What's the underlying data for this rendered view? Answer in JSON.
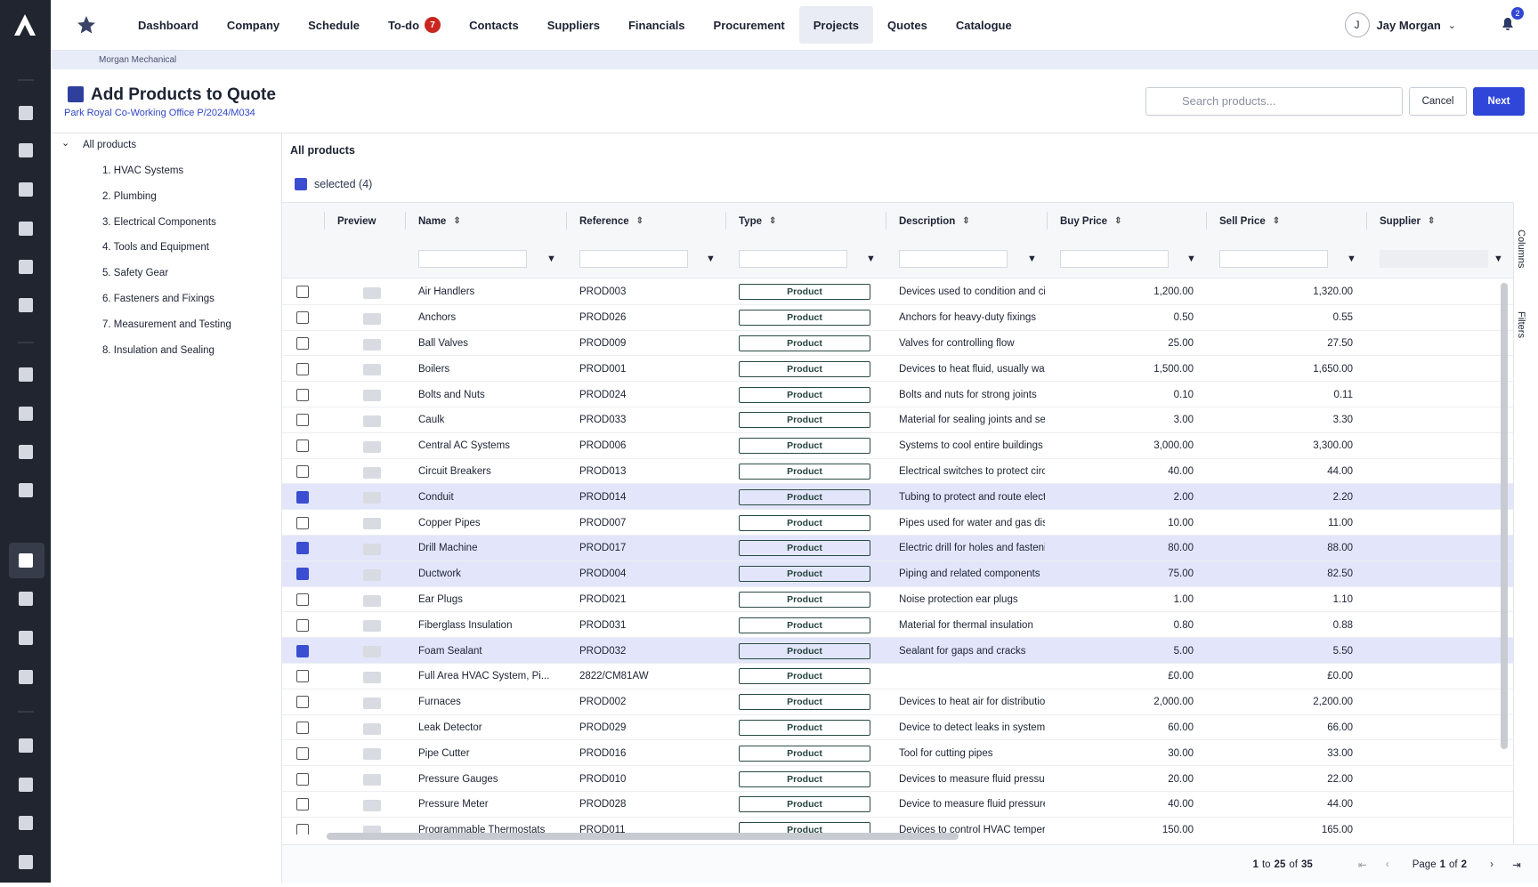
{
  "nav": {
    "items": [
      "Dashboard",
      "Company",
      "Schedule",
      "To-do",
      "Contacts",
      "Suppliers",
      "Financials",
      "Procurement",
      "Projects",
      "Quotes",
      "Catalogue"
    ],
    "todo_badge": "7",
    "user_initial": "J",
    "user_name": "Jay Morgan",
    "notif_badge": "2"
  },
  "breadcrumb": "Morgan Mechanical",
  "header": {
    "title": "Add Products to Quote",
    "subtitle": "Park Royal Co-Working Office P/2024/M034",
    "search_placeholder": "Search products...",
    "cancel": "Cancel",
    "next": "Next"
  },
  "tree": {
    "root": "All products",
    "items": [
      "1. HVAC Systems",
      "2. Plumbing",
      "3. Electrical Components",
      "4. Tools and Equipment",
      "5. Safety Gear",
      "6. Fasteners and Fixings",
      "7. Measurement and Testing",
      "8. Insulation and Sealing"
    ]
  },
  "grid": {
    "heading": "All products",
    "selected": "selected (4)",
    "columns": [
      "Preview",
      "Name",
      "Reference",
      "Type",
      "Description",
      "Buy Price",
      "Sell Price",
      "Supplier"
    ],
    "side_tabs": [
      "Columns",
      "Filters"
    ],
    "rows": [
      {
        "name": "Air Handlers",
        "ref": "PROD003",
        "type": "Product",
        "desc": "Devices used to condition and circulate air",
        "buy": "1,200.00",
        "sell": "1,320.00",
        "checked": false
      },
      {
        "name": "Anchors",
        "ref": "PROD026",
        "type": "Product",
        "desc": "Anchors for heavy-duty fixings",
        "buy": "0.50",
        "sell": "0.55",
        "checked": false
      },
      {
        "name": "Ball Valves",
        "ref": "PROD009",
        "type": "Product",
        "desc": "Valves for controlling flow",
        "buy": "25.00",
        "sell": "27.50",
        "checked": false
      },
      {
        "name": "Boilers",
        "ref": "PROD001",
        "type": "Product",
        "desc": "Devices to heat fluid, usually water",
        "buy": "1,500.00",
        "sell": "1,650.00",
        "checked": false
      },
      {
        "name": "Bolts and Nuts",
        "ref": "PROD024",
        "type": "Product",
        "desc": "Bolts and nuts for strong joints",
        "buy": "0.10",
        "sell": "0.11",
        "checked": false
      },
      {
        "name": "Caulk",
        "ref": "PROD033",
        "type": "Product",
        "desc": "Material for sealing joints and seams",
        "buy": "3.00",
        "sell": "3.30",
        "checked": false
      },
      {
        "name": "Central AC Systems",
        "ref": "PROD006",
        "type": "Product",
        "desc": "Systems to cool entire buildings",
        "buy": "3,000.00",
        "sell": "3,300.00",
        "checked": false
      },
      {
        "name": "Circuit Breakers",
        "ref": "PROD013",
        "type": "Product",
        "desc": "Electrical switches to protect circuits",
        "buy": "40.00",
        "sell": "44.00",
        "checked": false
      },
      {
        "name": "Conduit",
        "ref": "PROD014",
        "type": "Product",
        "desc": "Tubing to protect and route electrical wiring",
        "buy": "2.00",
        "sell": "2.20",
        "checked": true
      },
      {
        "name": "Copper Pipes",
        "ref": "PROD007",
        "type": "Product",
        "desc": "Pipes used for water and gas distribution",
        "buy": "10.00",
        "sell": "11.00",
        "checked": false
      },
      {
        "name": "Drill Machine",
        "ref": "PROD017",
        "type": "Product",
        "desc": "Electric drill for holes and fastening",
        "buy": "80.00",
        "sell": "88.00",
        "checked": true
      },
      {
        "name": "Ductwork",
        "ref": "PROD004",
        "type": "Product",
        "desc": "Piping and related components",
        "buy": "75.00",
        "sell": "82.50",
        "checked": true
      },
      {
        "name": "Ear Plugs",
        "ref": "PROD021",
        "type": "Product",
        "desc": "Noise protection ear plugs",
        "buy": "1.00",
        "sell": "1.10",
        "checked": false
      },
      {
        "name": "Fiberglass Insulation",
        "ref": "PROD031",
        "type": "Product",
        "desc": "Material for thermal insulation",
        "buy": "0.80",
        "sell": "0.88",
        "checked": false
      },
      {
        "name": "Foam Sealant",
        "ref": "PROD032",
        "type": "Product",
        "desc": "Sealant for gaps and cracks",
        "buy": "5.00",
        "sell": "5.50",
        "checked": true
      },
      {
        "name": "Full Area HVAC System, Pi...",
        "ref": "2822/CM81AW",
        "type": "Product",
        "desc": "",
        "buy": "£0.00",
        "sell": "£0.00",
        "checked": false
      },
      {
        "name": "Furnaces",
        "ref": "PROD002",
        "type": "Product",
        "desc": "Devices to heat air for distribution",
        "buy": "2,000.00",
        "sell": "2,200.00",
        "checked": false
      },
      {
        "name": "Leak Detector",
        "ref": "PROD029",
        "type": "Product",
        "desc": "Device to detect leaks in systems",
        "buy": "60.00",
        "sell": "66.00",
        "checked": false
      },
      {
        "name": "Pipe Cutter",
        "ref": "PROD016",
        "type": "Product",
        "desc": "Tool for cutting pipes",
        "buy": "30.00",
        "sell": "33.00",
        "checked": false
      },
      {
        "name": "Pressure Gauges",
        "ref": "PROD010",
        "type": "Product",
        "desc": "Devices to measure fluid pressure",
        "buy": "20.00",
        "sell": "22.00",
        "checked": false
      },
      {
        "name": "Pressure Meter",
        "ref": "PROD028",
        "type": "Product",
        "desc": "Device to measure fluid pressure",
        "buy": "40.00",
        "sell": "44.00",
        "checked": false
      },
      {
        "name": "Programmable Thermostats",
        "ref": "PROD011",
        "type": "Product",
        "desc": "Devices to control HVAC temperature",
        "buy": "150.00",
        "sell": "165.00",
        "checked": false
      }
    ],
    "pager": {
      "from": "1",
      "to_word": "to",
      "to": "25",
      "of_word": "of",
      "total": "35",
      "page_word": "Page",
      "page": "1",
      "page_of": "of",
      "pages": "2"
    }
  }
}
